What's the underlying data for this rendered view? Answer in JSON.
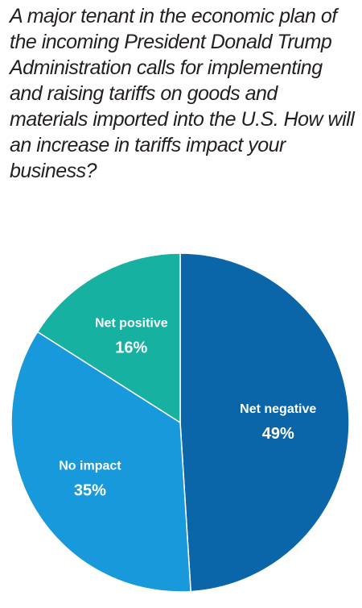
{
  "question": "A major tenant in the economic plan of the incoming President Donald Trump Administration calls for implementing and raising tariffs on goods and materials imported into the U.S. How will an increase in tariffs impact your business?",
  "chart_data": {
    "type": "pie",
    "title": "",
    "slices": [
      {
        "label": "Net negative",
        "value": 49,
        "value_label": "49%",
        "color": "#0a66a8"
      },
      {
        "label": "No impact",
        "value": 35,
        "value_label": "35%",
        "color": "#1799db"
      },
      {
        "label": "Net positive",
        "value": 16,
        "value_label": "16%",
        "color": "#16b1a0"
      }
    ],
    "start": "12 o'clock",
    "direction": "clockwise",
    "legend": "none",
    "grid": false
  }
}
